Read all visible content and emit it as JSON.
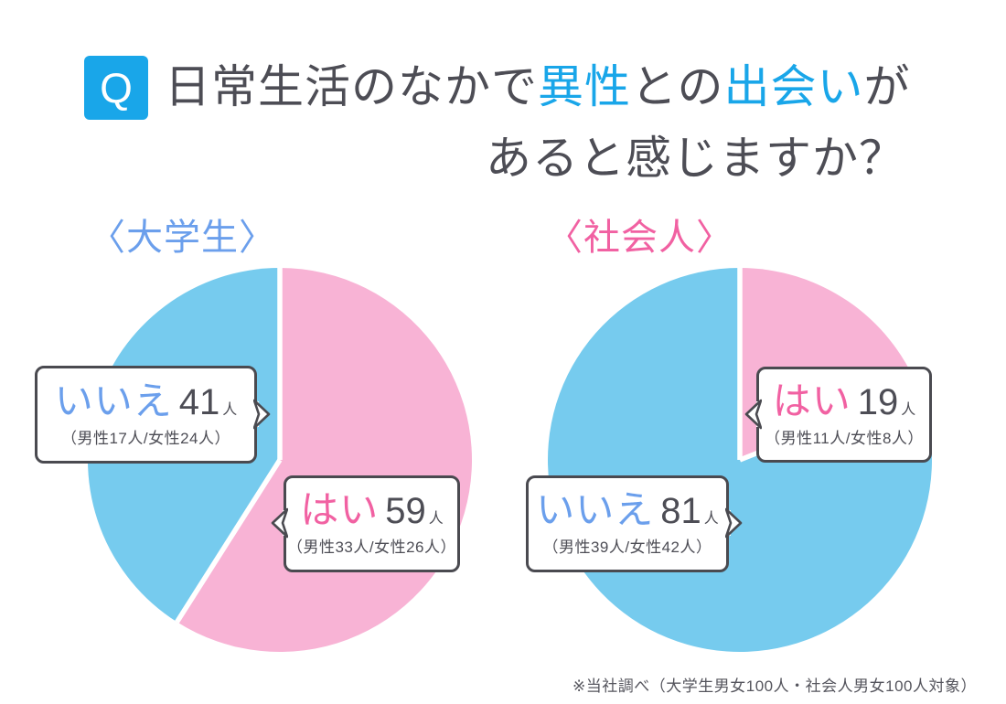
{
  "title": {
    "q_label": "Q",
    "line1_segments": [
      {
        "text": "日常生活のなかで",
        "accent": false
      },
      {
        "text": "異性",
        "accent": true
      },
      {
        "text": "との",
        "accent": false
      },
      {
        "text": "出会い",
        "accent": true
      },
      {
        "text": "が",
        "accent": false
      }
    ],
    "line2": "あると感じますか？"
  },
  "footnote": "※当社調べ（大学生男女100人・社会人男女100人対象）",
  "colors": {
    "accent_blue": "#19A6E9",
    "pie_blue": "#76CBEE",
    "pie_pink": "#F8B3D5",
    "label_blue": "#6B9FEC",
    "label_pink": "#F161A2",
    "text_dark": "#4D4D55",
    "callout_border": "#4A4A50",
    "footnote_gray": "#55555D"
  },
  "chart_data": [
    {
      "type": "pie",
      "title": "〈大学生〉",
      "group": "大学生",
      "unit": "人",
      "total": 100,
      "start_angle_deg": 0,
      "direction": "clockwise",
      "legend_position": "callouts",
      "categories": [
        "はい",
        "いいえ"
      ],
      "values": [
        59,
        41
      ],
      "slices": [
        {
          "label": "はい",
          "value": 59,
          "detail": "（男性33人/女性26人）",
          "color": "#F8B3D5"
        },
        {
          "label": "いいえ",
          "value": 41,
          "detail": "（男性17人/女性24人）",
          "color": "#76CBEE"
        }
      ]
    },
    {
      "type": "pie",
      "title": "〈社会人〉",
      "group": "社会人",
      "unit": "人",
      "total": 100,
      "start_angle_deg": 0,
      "direction": "clockwise",
      "legend_position": "callouts",
      "categories": [
        "はい",
        "いいえ"
      ],
      "values": [
        19,
        81
      ],
      "slices": [
        {
          "label": "はい",
          "value": 19,
          "detail": "（男性11人/女性8人）",
          "color": "#F8B3D5"
        },
        {
          "label": "いいえ",
          "value": 81,
          "detail": "（男性39人/女性42人）",
          "color": "#76CBEE"
        }
      ]
    }
  ]
}
